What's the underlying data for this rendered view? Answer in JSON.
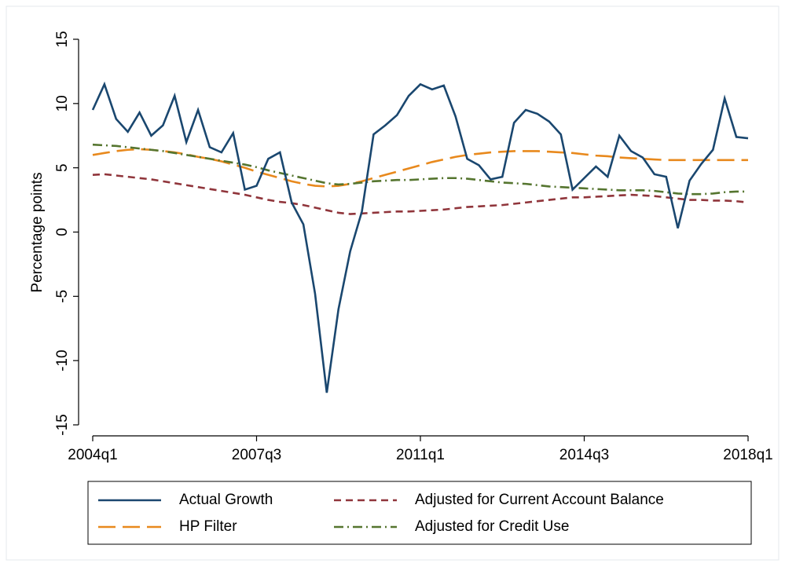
{
  "chart_data": {
    "type": "line",
    "ylabel": "Percentage points",
    "categories": [
      "2004q1",
      null,
      null,
      null,
      null,
      null,
      null,
      null,
      null,
      null,
      null,
      null,
      null,
      null,
      "2007q3",
      null,
      null,
      null,
      null,
      null,
      null,
      null,
      null,
      null,
      null,
      null,
      null,
      null,
      "2011q1",
      null,
      null,
      null,
      null,
      null,
      null,
      null,
      null,
      null,
      null,
      null,
      null,
      null,
      "2014q3",
      null,
      null,
      null,
      null,
      null,
      null,
      null,
      null,
      null,
      null,
      null,
      null,
      null,
      "2018q1"
    ],
    "series": [
      {
        "name": "Actual Growth",
        "color": "#1a476f",
        "dash": "solid",
        "values": [
          9.5,
          11.5,
          8.8,
          7.8,
          9.3,
          7.5,
          8.3,
          10.6,
          7.0,
          9.5,
          6.6,
          6.2,
          7.7,
          3.3,
          3.6,
          5.7,
          6.2,
          2.3,
          0.6,
          -4.8,
          -12.5,
          -6.0,
          -1.5,
          1.6,
          7.6,
          8.3,
          9.1,
          10.6,
          11.5,
          11.1,
          11.4,
          9.0,
          5.7,
          5.2,
          4.1,
          4.3,
          8.5,
          9.5,
          9.2,
          8.6,
          7.6,
          3.3,
          4.2,
          5.1,
          4.3,
          7.5,
          6.3,
          5.8,
          4.5,
          4.3,
          0.3,
          4.0,
          5.3,
          6.4,
          10.4,
          7.4,
          7.3
        ]
      },
      {
        "name": "Adjusted for Current Account Balance",
        "color": "#90353b",
        "dash": "short-dash",
        "values": [
          4.45,
          4.5,
          4.4,
          4.3,
          4.2,
          4.1,
          3.95,
          3.8,
          3.65,
          3.5,
          3.35,
          3.2,
          3.05,
          2.9,
          2.7,
          2.5,
          2.35,
          2.25,
          2.1,
          1.9,
          1.7,
          1.5,
          1.4,
          1.45,
          1.5,
          1.55,
          1.6,
          1.6,
          1.65,
          1.7,
          1.75,
          1.85,
          1.95,
          2.0,
          2.05,
          2.1,
          2.2,
          2.3,
          2.4,
          2.5,
          2.6,
          2.7,
          2.7,
          2.75,
          2.8,
          2.85,
          2.9,
          2.85,
          2.8,
          2.7,
          2.6,
          2.5,
          2.5,
          2.45,
          2.45,
          2.4,
          2.3
        ]
      },
      {
        "name": "HP Filter",
        "color": "#e8891d",
        "dash": "long-dash",
        "values": [
          6.0,
          6.15,
          6.3,
          6.4,
          6.45,
          6.4,
          6.3,
          6.2,
          6.05,
          5.85,
          5.7,
          5.5,
          5.25,
          5.0,
          4.7,
          4.45,
          4.2,
          3.95,
          3.75,
          3.6,
          3.55,
          3.6,
          3.75,
          3.95,
          4.2,
          4.45,
          4.7,
          4.95,
          5.2,
          5.45,
          5.65,
          5.85,
          6.0,
          6.1,
          6.2,
          6.25,
          6.3,
          6.3,
          6.3,
          6.25,
          6.2,
          6.15,
          6.05,
          5.95,
          5.9,
          5.8,
          5.75,
          5.7,
          5.65,
          5.6,
          5.6,
          5.6,
          5.6,
          5.6,
          5.6,
          5.6,
          5.6
        ]
      },
      {
        "name": "Adjusted for Credit Use",
        "color": "#55752f",
        "dash": "dash-dot",
        "values": [
          6.8,
          6.75,
          6.7,
          6.6,
          6.5,
          6.4,
          6.3,
          6.15,
          6.0,
          5.85,
          5.7,
          5.55,
          5.4,
          5.25,
          5.05,
          4.8,
          4.6,
          4.4,
          4.2,
          4.0,
          3.8,
          3.7,
          3.75,
          3.85,
          3.95,
          4.0,
          4.05,
          4.05,
          4.1,
          4.15,
          4.2,
          4.2,
          4.15,
          4.05,
          3.95,
          3.85,
          3.8,
          3.75,
          3.65,
          3.55,
          3.5,
          3.45,
          3.4,
          3.35,
          3.3,
          3.25,
          3.25,
          3.25,
          3.2,
          3.1,
          3.0,
          2.95,
          2.95,
          3.0,
          3.1,
          3.15,
          3.15
        ]
      }
    ],
    "ylim": [
      -15,
      15
    ],
    "yticks": [
      -15,
      -10,
      -5,
      0,
      5,
      10,
      15
    ],
    "grid": false,
    "legend": "bottom"
  }
}
